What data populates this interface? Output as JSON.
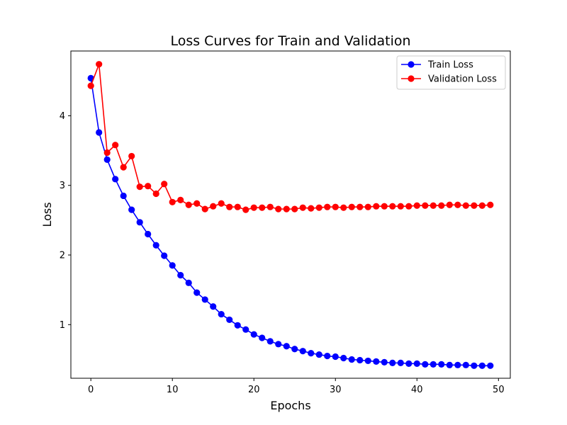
{
  "chart_data": {
    "type": "line",
    "title": "Loss Curves for Train and Validation",
    "xlabel": "Epochs",
    "ylabel": "Loss",
    "xlim": [
      -2.45,
      51.45
    ],
    "ylim": [
      0.23,
      4.93
    ],
    "xticks": [
      0,
      10,
      20,
      30,
      40,
      50
    ],
    "yticks": [
      1,
      2,
      3,
      4
    ],
    "grid": false,
    "legend_position": "top-right",
    "x": [
      0,
      1,
      2,
      3,
      4,
      5,
      6,
      7,
      8,
      9,
      10,
      11,
      12,
      13,
      14,
      15,
      16,
      17,
      18,
      19,
      20,
      21,
      22,
      23,
      24,
      25,
      26,
      27,
      28,
      29,
      30,
      31,
      32,
      33,
      34,
      35,
      36,
      37,
      38,
      39,
      40,
      41,
      42,
      43,
      44,
      45,
      46,
      47,
      48,
      49
    ],
    "series": [
      {
        "name": "Train Loss",
        "color": "#0000ff",
        "marker": "circle",
        "values": [
          4.54,
          3.76,
          3.37,
          3.09,
          2.85,
          2.65,
          2.47,
          2.3,
          2.14,
          1.99,
          1.85,
          1.71,
          1.6,
          1.46,
          1.36,
          1.26,
          1.15,
          1.07,
          0.99,
          0.93,
          0.86,
          0.81,
          0.76,
          0.72,
          0.69,
          0.65,
          0.62,
          0.59,
          0.57,
          0.55,
          0.54,
          0.52,
          0.5,
          0.49,
          0.48,
          0.47,
          0.46,
          0.45,
          0.45,
          0.44,
          0.44,
          0.43,
          0.43,
          0.43,
          0.42,
          0.42,
          0.42,
          0.41,
          0.41,
          0.41
        ]
      },
      {
        "name": "Validation Loss",
        "color": "#ff0000",
        "marker": "circle",
        "values": [
          4.43,
          4.74,
          3.47,
          3.58,
          3.26,
          3.42,
          2.98,
          2.99,
          2.88,
          3.02,
          2.76,
          2.79,
          2.72,
          2.74,
          2.66,
          2.7,
          2.74,
          2.69,
          2.69,
          2.65,
          2.68,
          2.68,
          2.69,
          2.66,
          2.66,
          2.66,
          2.68,
          2.67,
          2.68,
          2.69,
          2.69,
          2.68,
          2.69,
          2.69,
          2.69,
          2.7,
          2.7,
          2.7,
          2.7,
          2.7,
          2.71,
          2.71,
          2.71,
          2.71,
          2.72,
          2.72,
          2.71,
          2.71,
          2.71,
          2.72
        ]
      }
    ]
  }
}
